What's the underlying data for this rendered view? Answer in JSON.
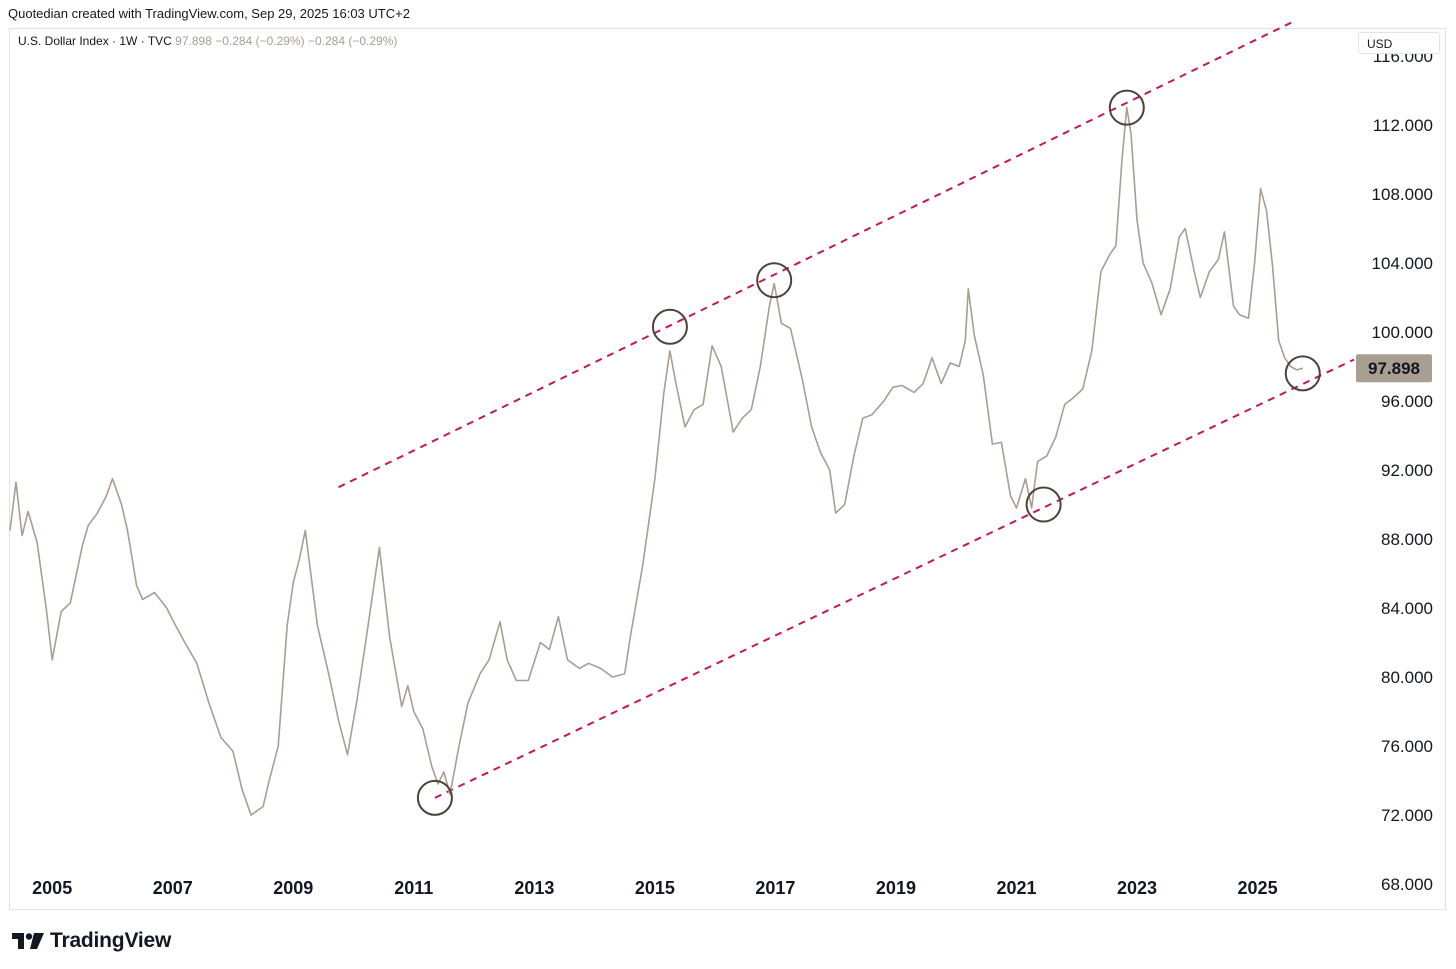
{
  "attribution": "Quotedian created with TradingView.com, Sep 29, 2025 16:03 UTC+2",
  "legend": {
    "symbol": "U.S. Dollar Index · 1W · TVC",
    "price": "97.898",
    "change": "−0.284 (−0.29%)",
    "change2": "−0.284 (−0.29%)"
  },
  "currency_label": "USD",
  "brand": "TradingView",
  "colors": {
    "line": "#a89e92",
    "channel": "#c2185b",
    "marker": "#4e4238",
    "last_badge": "#a89e92"
  },
  "chart_data": {
    "type": "line",
    "title": "U.S. Dollar Index",
    "interval": "1W",
    "xlim": [
      2004.3,
      2026.6
    ],
    "ylim": [
      66.5,
      117.5
    ],
    "x_ticks": [
      "2005",
      "2007",
      "2009",
      "2011",
      "2013",
      "2015",
      "2017",
      "2019",
      "2021",
      "2023",
      "2025"
    ],
    "y_ticks": [
      "116.000",
      "112.000",
      "108.000",
      "104.000",
      "100.000",
      "96.000",
      "92.000",
      "88.000",
      "84.000",
      "80.000",
      "76.000",
      "72.000",
      "68.000"
    ],
    "last_value": "97.898",
    "series": [
      {
        "name": "U.S. Dollar Index",
        "x": [
          2004.3,
          2004.4,
          2004.5,
          2004.6,
          2004.75,
          2004.9,
          2005.0,
          2005.15,
          2005.3,
          2005.5,
          2005.6,
          2005.75,
          2005.9,
          2006.0,
          2006.15,
          2006.25,
          2006.4,
          2006.5,
          2006.7,
          2006.9,
          2007.0,
          2007.2,
          2007.4,
          2007.6,
          2007.8,
          2008.0,
          2008.15,
          2008.3,
          2008.5,
          2008.6,
          2008.75,
          2008.9,
          2009.0,
          2009.1,
          2009.2,
          2009.4,
          2009.6,
          2009.75,
          2009.9,
          2010.05,
          2010.2,
          2010.43,
          2010.6,
          2010.8,
          2010.9,
          2011.0,
          2011.15,
          2011.3,
          2011.4,
          2011.5,
          2011.6,
          2011.75,
          2011.9,
          2012.1,
          2012.25,
          2012.43,
          2012.55,
          2012.7,
          2012.9,
          2013.1,
          2013.25,
          2013.4,
          2013.55,
          2013.75,
          2013.9,
          2014.1,
          2014.3,
          2014.5,
          2014.6,
          2014.8,
          2015.0,
          2015.15,
          2015.25,
          2015.35,
          2015.5,
          2015.65,
          2015.8,
          2015.95,
          2016.1,
          2016.3,
          2016.45,
          2016.6,
          2016.75,
          2016.9,
          2016.98,
          2017.1,
          2017.25,
          2017.45,
          2017.6,
          2017.75,
          2017.9,
          2018.0,
          2018.15,
          2018.3,
          2018.45,
          2018.6,
          2018.8,
          2018.95,
          2019.1,
          2019.3,
          2019.45,
          2019.6,
          2019.75,
          2019.9,
          2020.05,
          2020.15,
          2020.2,
          2020.3,
          2020.45,
          2020.6,
          2020.75,
          2020.9,
          2021.0,
          2021.15,
          2021.25,
          2021.35,
          2021.5,
          2021.65,
          2021.8,
          2021.95,
          2022.1,
          2022.25,
          2022.4,
          2022.55,
          2022.65,
          2022.75,
          2022.83,
          2022.9,
          2023.0,
          2023.1,
          2023.25,
          2023.4,
          2023.55,
          2023.7,
          2023.8,
          2023.95,
          2024.05,
          2024.2,
          2024.35,
          2024.45,
          2024.6,
          2024.7,
          2024.85,
          2024.95,
          2025.05,
          2025.15,
          2025.25,
          2025.35,
          2025.45,
          2025.55,
          2025.65,
          2025.75
        ],
        "y": [
          88.5,
          91.3,
          88.2,
          89.6,
          87.8,
          84.0,
          81.0,
          83.8,
          84.3,
          87.6,
          88.8,
          89.5,
          90.5,
          91.5,
          90.0,
          88.5,
          85.3,
          84.5,
          84.9,
          84.0,
          83.3,
          82.0,
          80.8,
          78.5,
          76.5,
          75.7,
          73.5,
          72.0,
          72.5,
          74.0,
          76.0,
          83.0,
          85.5,
          86.8,
          88.5,
          83.0,
          80.0,
          77.5,
          75.5,
          78.5,
          82.0,
          87.5,
          82.3,
          78.3,
          79.5,
          78.0,
          77.0,
          74.8,
          73.8,
          74.5,
          73.2,
          76.0,
          78.5,
          80.2,
          81.0,
          83.2,
          81.0,
          79.8,
          79.8,
          82.0,
          81.6,
          83.5,
          81.0,
          80.5,
          80.8,
          80.5,
          80.0,
          80.2,
          82.5,
          86.5,
          91.5,
          96.5,
          98.9,
          97.0,
          94.5,
          95.5,
          95.8,
          99.2,
          98.0,
          94.2,
          95.0,
          95.5,
          98.0,
          101.5,
          102.8,
          100.5,
          100.2,
          97.2,
          94.5,
          93.0,
          92.0,
          89.5,
          90.0,
          92.8,
          95.0,
          95.2,
          96.0,
          96.8,
          96.9,
          96.5,
          97.0,
          98.5,
          97.0,
          98.2,
          98.0,
          99.5,
          102.5,
          99.8,
          97.5,
          93.5,
          93.6,
          90.5,
          89.8,
          91.5,
          89.8,
          92.5,
          92.8,
          93.9,
          95.8,
          96.2,
          96.7,
          98.9,
          103.5,
          104.5,
          105.0,
          110.0,
          113.0,
          111.5,
          106.5,
          104.0,
          102.8,
          101.0,
          102.5,
          105.5,
          106.0,
          103.5,
          102.0,
          103.5,
          104.2,
          105.8,
          101.5,
          101.0,
          100.8,
          104.0,
          108.3,
          107.0,
          103.8,
          99.5,
          98.5,
          98.0,
          97.8,
          97.898
        ]
      }
    ],
    "channel": {
      "upper": {
        "from": [
          2009.75,
          91.0
        ],
        "to": [
          2025.6,
          118.0
        ]
      },
      "lower": {
        "from": [
          2011.35,
          73.0
        ],
        "to": [
          2026.6,
          98.4
        ]
      }
    },
    "marked_points": [
      {
        "x": 2011.35,
        "y": 73.0
      },
      {
        "x": 2015.25,
        "y": 100.3
      },
      {
        "x": 2016.98,
        "y": 103.0
      },
      {
        "x": 2021.45,
        "y": 90.0
      },
      {
        "x": 2022.83,
        "y": 113.0
      },
      {
        "x": 2025.75,
        "y": 97.6
      }
    ]
  }
}
